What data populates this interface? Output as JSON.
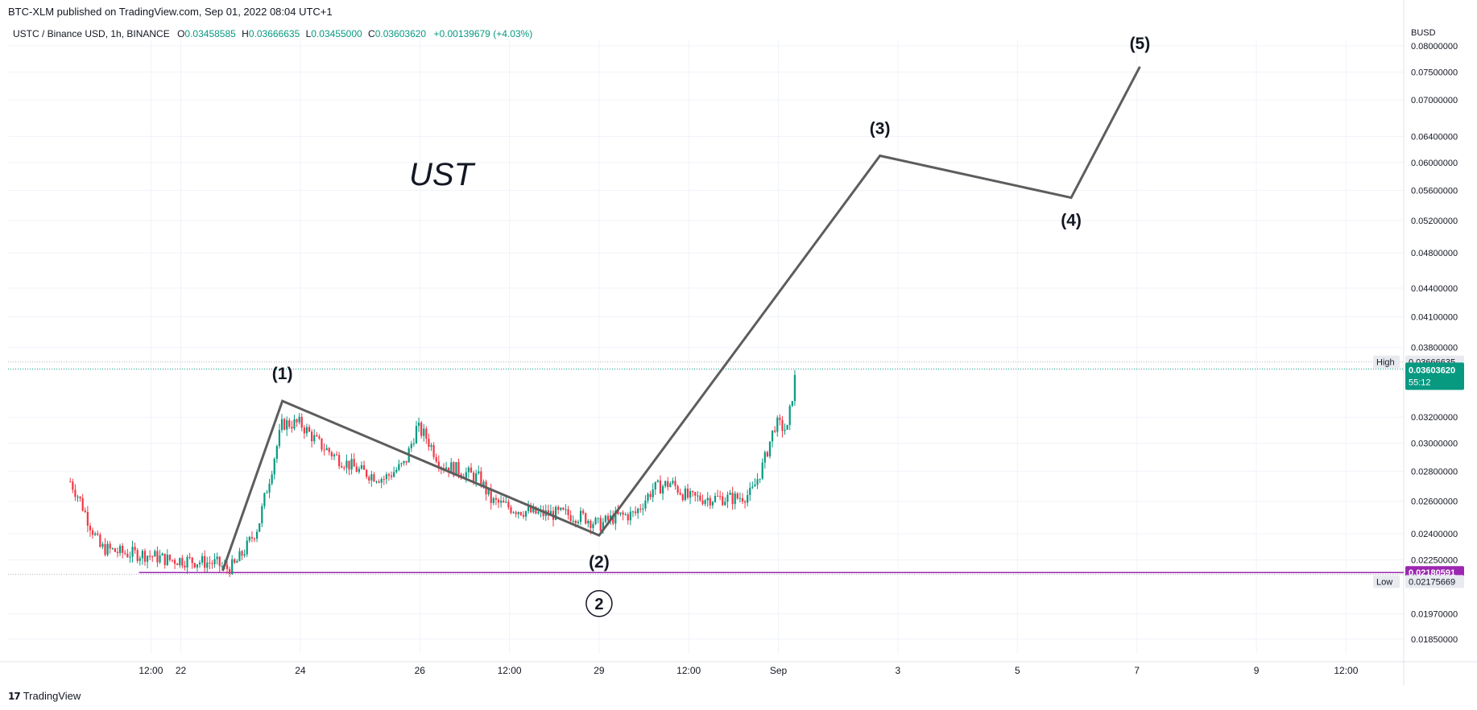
{
  "header": {
    "caption": "BTC-XLM published on TradingView.com, Sep 01, 2022 08:04 UTC+1"
  },
  "legend": {
    "symbol": "USTC / Binance USD, 1h, BINANCE",
    "open_label": "O",
    "open": "0.03458585",
    "high_label": "H",
    "high": "0.03666635",
    "low_label": "L",
    "low": "0.03455000",
    "close_label": "C",
    "close": "0.03603620",
    "change": "+0.00139679 (+4.03%)"
  },
  "footer": {
    "brand": "TradingView",
    "brand_icon": "tradingview-logo-icon"
  },
  "colors": {
    "up": "#089981",
    "down": "#f23645",
    "wave_line": "#5d5d5d",
    "support_line": "#9c27b0",
    "price_tag": "#089981"
  },
  "chart_data": {
    "type": "candlestick",
    "title": "UST",
    "currency": "BUSD",
    "y_ticks": [
      "0.08000000",
      "0.07500000",
      "0.07000000",
      "0.06400000",
      "0.06000000",
      "0.05600000",
      "0.05200000",
      "0.04800000",
      "0.04400000",
      "0.04100000",
      "0.03800000",
      "0.03200000",
      "0.03000000",
      "0.02800000",
      "0.02600000",
      "0.02400000",
      "0.02250000",
      "0.01970000",
      "0.01850000"
    ],
    "x_ticks": [
      {
        "label": "12:00",
        "t": 21.5
      },
      {
        "label": "22",
        "t": 22.0
      },
      {
        "label": "24",
        "t": 24.0
      },
      {
        "label": "26",
        "t": 26.0
      },
      {
        "label": "12:00",
        "t": 27.5
      },
      {
        "label": "29",
        "t": 29.0
      },
      {
        "label": "12:00",
        "t": 30.5
      },
      {
        "label": "Sep",
        "t": 32.0
      },
      {
        "label": "3",
        "t": 34.0
      },
      {
        "label": "5",
        "t": 36.0
      },
      {
        "label": "7",
        "t": 38.0
      },
      {
        "label": "9",
        "t": 40.0
      },
      {
        "label": "12:00",
        "t": 41.5
      }
    ],
    "price_anchors": [
      {
        "t": 20.15,
        "p": 0.0273
      },
      {
        "t": 20.3,
        "p": 0.0262
      },
      {
        "t": 20.45,
        "p": 0.0248
      },
      {
        "t": 20.65,
        "p": 0.0232
      },
      {
        "t": 21.0,
        "p": 0.0229
      },
      {
        "t": 21.4,
        "p": 0.0228
      },
      {
        "t": 21.8,
        "p": 0.0225
      },
      {
        "t": 22.0,
        "p": 0.0225
      },
      {
        "t": 22.3,
        "p": 0.0224
      },
      {
        "t": 22.6,
        "p": 0.0223
      },
      {
        "t": 22.75,
        "p": 0.022
      },
      {
        "t": 22.9,
        "p": 0.0222
      },
      {
        "t": 23.1,
        "p": 0.0232
      },
      {
        "t": 23.3,
        "p": 0.0245
      },
      {
        "t": 23.5,
        "p": 0.0278
      },
      {
        "t": 23.7,
        "p": 0.0315
      },
      {
        "t": 24.0,
        "p": 0.0315
      },
      {
        "t": 24.3,
        "p": 0.03
      },
      {
        "t": 24.6,
        "p": 0.029
      },
      {
        "t": 25.0,
        "p": 0.028
      },
      {
        "t": 25.4,
        "p": 0.0275
      },
      {
        "t": 25.75,
        "p": 0.0285
      },
      {
        "t": 25.95,
        "p": 0.0312
      },
      {
        "t": 26.1,
        "p": 0.0305
      },
      {
        "t": 26.35,
        "p": 0.0285
      },
      {
        "t": 26.7,
        "p": 0.028
      },
      {
        "t": 27.0,
        "p": 0.0275
      },
      {
        "t": 27.2,
        "p": 0.026
      },
      {
        "t": 27.6,
        "p": 0.0255
      },
      {
        "t": 28.0,
        "p": 0.0252
      },
      {
        "t": 28.4,
        "p": 0.0252
      },
      {
        "t": 28.75,
        "p": 0.025
      },
      {
        "t": 29.0,
        "p": 0.0245
      },
      {
        "t": 29.25,
        "p": 0.025
      },
      {
        "t": 29.6,
        "p": 0.0252
      },
      {
        "t": 29.9,
        "p": 0.0268
      },
      {
        "t": 30.2,
        "p": 0.0272
      },
      {
        "t": 30.5,
        "p": 0.0262
      },
      {
        "t": 30.9,
        "p": 0.0262
      },
      {
        "t": 31.3,
        "p": 0.0262
      },
      {
        "t": 31.55,
        "p": 0.0265
      },
      {
        "t": 31.75,
        "p": 0.0285
      },
      {
        "t": 31.95,
        "p": 0.0315
      },
      {
        "t": 32.15,
        "p": 0.031
      },
      {
        "t": 32.3,
        "p": 0.036
      }
    ],
    "wave_points": [
      {
        "label": "",
        "t": 22.7,
        "p": 0.0219
      },
      {
        "label": "(1)",
        "t": 23.7,
        "p": 0.0333
      },
      {
        "label": "(2)",
        "t": 29.0,
        "p": 0.0239
      },
      {
        "label": "(3)",
        "t": 33.7,
        "p": 0.061
      },
      {
        "label": "(4)",
        "t": 36.9,
        "p": 0.055
      },
      {
        "label": "(5)",
        "t": 38.05,
        "p": 0.076
      }
    ],
    "circled_label": {
      "text": "2",
      "t": 29.0,
      "p": 0.0202
    },
    "levels": {
      "high": {
        "label": "High",
        "value": "0.03666635"
      },
      "last": {
        "value": "0.03603620",
        "countdown": "55:12"
      },
      "support": {
        "value": "0.02180591"
      },
      "low": {
        "label": "Low",
        "value": "0.02175669"
      }
    },
    "grid": true
  }
}
